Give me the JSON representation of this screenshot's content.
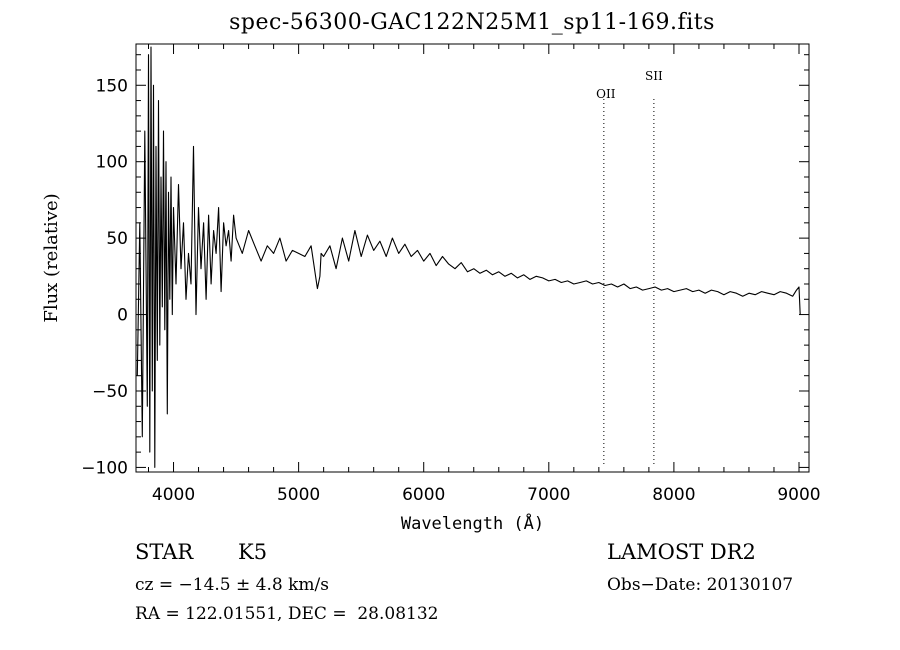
{
  "chart_data": {
    "type": "line",
    "title": "spec-56300-GAC122N25M1_sp11-169.fits",
    "xlabel": "Wavelength (Å)",
    "ylabel": "Flux (relative)",
    "xlim": [
      3700,
      9080
    ],
    "ylim": [
      -103,
      177
    ],
    "x_ticks": [
      4000,
      5000,
      6000,
      7000,
      8000,
      9000
    ],
    "y_ticks": [
      -100,
      -50,
      0,
      50,
      100,
      150
    ],
    "grid": false,
    "line_color": "#000000",
    "series": [
      {
        "x": [
          3710,
          3730,
          3750,
          3770,
          3790,
          3800,
          3810,
          3820,
          3830,
          3840,
          3850,
          3860,
          3870,
          3880,
          3890,
          3900,
          3910,
          3920,
          3930,
          3940,
          3950,
          3960,
          3970,
          3980,
          3990,
          4000,
          4020,
          4040,
          4060,
          4080,
          4100,
          4120,
          4140,
          4160,
          4180,
          4200,
          4220,
          4240,
          4260,
          4280,
          4300,
          4320,
          4340,
          4360,
          4380,
          4400,
          4420,
          4440,
          4460,
          4480,
          4500,
          4550,
          4600,
          4650,
          4700,
          4750,
          4800,
          4850,
          4900,
          4950,
          5000,
          5050,
          5100,
          5150,
          5170,
          5180,
          5200,
          5250,
          5300,
          5350,
          5400,
          5450,
          5500,
          5550,
          5600,
          5650,
          5700,
          5750,
          5800,
          5850,
          5900,
          5950,
          6000,
          6050,
          6100,
          6150,
          6200,
          6250,
          6300,
          6350,
          6400,
          6450,
          6500,
          6550,
          6600,
          6650,
          6700,
          6750,
          6800,
          6850,
          6900,
          6950,
          7000,
          7050,
          7100,
          7150,
          7200,
          7250,
          7300,
          7350,
          7400,
          7450,
          7500,
          7550,
          7600,
          7650,
          7700,
          7750,
          7800,
          7850,
          7900,
          7950,
          8000,
          8050,
          8100,
          8150,
          8200,
          8250,
          8300,
          8350,
          8400,
          8450,
          8500,
          8550,
          8600,
          8650,
          8700,
          8750,
          8800,
          8850,
          8900,
          8950,
          8980,
          9000,
          9010
        ],
        "y": [
          -40,
          60,
          -80,
          120,
          -60,
          170,
          -90,
          175,
          -50,
          150,
          -100,
          110,
          -30,
          140,
          -20,
          90,
          5,
          120,
          -10,
          100,
          -65,
          80,
          10,
          90,
          0,
          70,
          20,
          85,
          30,
          60,
          10,
          40,
          20,
          110,
          0,
          70,
          30,
          60,
          10,
          65,
          20,
          55,
          40,
          70,
          15,
          60,
          45,
          55,
          35,
          65,
          50,
          40,
          55,
          45,
          35,
          45,
          40,
          50,
          35,
          42,
          40,
          38,
          45,
          17,
          25,
          40,
          38,
          45,
          30,
          50,
          35,
          55,
          38,
          52,
          42,
          48,
          38,
          50,
          40,
          46,
          38,
          42,
          35,
          40,
          32,
          38,
          33,
          30,
          34,
          28,
          30,
          27,
          29,
          26,
          28,
          25,
          27,
          24,
          26,
          23,
          25,
          24,
          22,
          23,
          21,
          22,
          20,
          21,
          22,
          20,
          21,
          19,
          20,
          18,
          20,
          17,
          18,
          16,
          17,
          18,
          16,
          17,
          15,
          16,
          17,
          15,
          16,
          14,
          16,
          15,
          13,
          15,
          14,
          12,
          14,
          13,
          15,
          14,
          13,
          15,
          14,
          12,
          16,
          18,
          0
        ]
      }
    ],
    "annotations": [
      {
        "label": "OII",
        "x": 7440
      },
      {
        "label": "SII",
        "x": 7840
      }
    ]
  },
  "info": {
    "object_type": "STAR",
    "subclass": "K5",
    "survey": "LAMOST DR2",
    "cz": "cz = −14.5 ± 4.8 km/s",
    "obs_date": "Obs−Date: 20130107",
    "coords": "RA = 122.01551, DEC =  28.08132"
  }
}
